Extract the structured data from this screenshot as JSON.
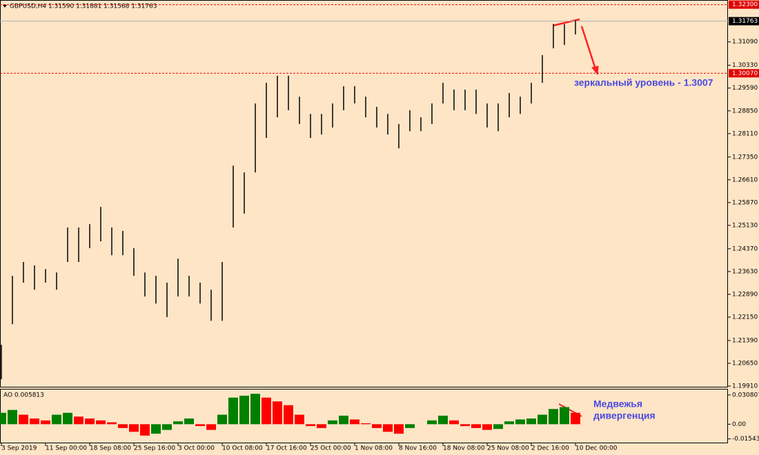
{
  "chart_data": [
    {
      "type": "ohlc",
      "title": "GBPUSD,H4  1.31590 1.31881 1.31568 1.31763",
      "color": "#000000",
      "categories": [
        "3 Sep 2019",
        null,
        null,
        null,
        "11 Sep 00:00",
        null,
        null,
        null,
        "18 Sep 08:00",
        null,
        null,
        null,
        "25 Sep 16:00",
        null,
        null,
        null,
        "3 Oct 00:00",
        null,
        null,
        null,
        "10 Oct 08:00",
        null,
        null,
        null,
        "17 Oct 16:00",
        null,
        null,
        null,
        "25 Oct 00:00",
        null,
        null,
        null,
        "1 Nov 08:00",
        null,
        null,
        null,
        "8 Nov 16:00",
        null,
        null,
        null,
        "18 Nov 08:00",
        null,
        null,
        null,
        "25 Nov 08:00",
        null,
        null,
        null,
        "2 Dec 16:00",
        null,
        null,
        null,
        "10 Dec 00:00"
      ],
      "high": [
        1.2125,
        1.2349,
        1.2394,
        1.2383,
        1.2371,
        1.236,
        1.2506,
        1.2506,
        1.2517,
        1.2573,
        1.2506,
        1.2495,
        1.2439,
        1.236,
        1.2349,
        1.2327,
        1.2405,
        1.2349,
        1.2327,
        1.2304,
        1.2394,
        1.2707,
        1.2685,
        1.2909,
        1.2976,
        1.2999,
        1.2999,
        1.2931,
        1.2875,
        1.2875,
        1.2909,
        1.2965,
        1.2965,
        1.2931,
        1.2898,
        1.2875,
        1.2842,
        1.2887,
        1.2864,
        1.2909,
        1.2976,
        1.2954,
        1.2954,
        1.2954,
        1.2909,
        1.2909,
        1.2943,
        1.2931,
        1.2976,
        1.3066,
        1.3167,
        1.3167,
        1.3178
      ],
      "low": [
        1.2013,
        1.2192,
        1.2327,
        1.2304,
        1.2327,
        1.2304,
        1.2394,
        1.2394,
        1.2439,
        1.2461,
        1.2416,
        1.2416,
        1.2349,
        1.2282,
        1.2259,
        1.2215,
        1.2282,
        1.2282,
        1.2259,
        1.2203,
        1.2203,
        1.2506,
        1.2551,
        1.2685,
        1.2797,
        1.2864,
        1.2887,
        1.2842,
        1.2797,
        1.2808,
        1.2831,
        1.2887,
        1.2909,
        1.2864,
        1.2831,
        1.2808,
        1.2763,
        1.2819,
        1.2819,
        1.2842,
        1.2909,
        1.2887,
        1.2887,
        1.2875,
        1.2831,
        1.2819,
        1.2864,
        1.2875,
        1.2909,
        1.2976,
        1.3088,
        1.3099,
        1.3133
      ],
      "ylim": [
        1.1991,
        1.3245
      ],
      "yticks": [
        {
          "value": 1.1991,
          "label": "1.19910"
        },
        {
          "value": 1.2065,
          "label": "1.20650"
        },
        {
          "value": 1.2139,
          "label": "1.21390"
        },
        {
          "value": 1.2215,
          "label": "1.22150"
        },
        {
          "value": 1.2289,
          "label": "1.22890"
        },
        {
          "value": 1.2363,
          "label": "1.23630"
        },
        {
          "value": 1.2437,
          "label": "1.24370"
        },
        {
          "value": 1.2513,
          "label": "1.25130"
        },
        {
          "value": 1.2587,
          "label": "1.25870"
        },
        {
          "value": 1.2661,
          "label": "1.26610"
        },
        {
          "value": 1.2735,
          "label": "1.27350"
        },
        {
          "value": 1.2811,
          "label": "1.28110"
        },
        {
          "value": 1.2885,
          "label": "1.28850"
        },
        {
          "value": 1.2959,
          "label": "1.29590"
        },
        {
          "value": 1.3033,
          "label": "1.30330"
        },
        {
          "value": 1.3109,
          "label": "1.31090"
        }
      ],
      "levels": [
        {
          "value": 1.323,
          "label": "1.32300",
          "color": "#e00000",
          "style": "dashed"
        },
        {
          "value": 1.31763,
          "label": "1.31763",
          "color": "#000000",
          "style": "solid"
        },
        {
          "value": 1.3007,
          "label": "1.30070",
          "color": "#e00000",
          "style": "dashed"
        }
      ],
      "annotation": "зеркальный уровень - 1.3007"
    },
    {
      "type": "ao",
      "title": "AO 0.005813",
      "up_color": "#008000",
      "down_color": "#ff0000",
      "values": [
        0.012,
        0.015,
        0.01,
        0.006,
        0.004,
        0.01,
        0.012,
        0.008,
        0.006,
        0.004,
        0.002,
        -0.004,
        -0.008,
        -0.012,
        -0.01,
        -0.006,
        0.003,
        0.006,
        -0.002,
        -0.006,
        0.01,
        0.028,
        0.03,
        0.032,
        0.028,
        0.024,
        0.02,
        0.01,
        -0.002,
        -0.004,
        0.004,
        0.009,
        0.005,
        0.001,
        -0.004,
        -0.008,
        -0.01,
        -0.004,
        0.0,
        0.004,
        0.009,
        0.004,
        -0.002,
        -0.004,
        -0.006,
        -0.005,
        0.003,
        0.005,
        0.006,
        0.01,
        0.016,
        0.018,
        0.012
      ],
      "ylim": [
        -0.0179,
        0.0358
      ],
      "yticks": [
        0.030807,
        {
          "value": 0,
          "label": "0.00"
        },
        -0.015438
      ],
      "annotation": [
        "Медвежья",
        "дивергенция"
      ]
    }
  ]
}
